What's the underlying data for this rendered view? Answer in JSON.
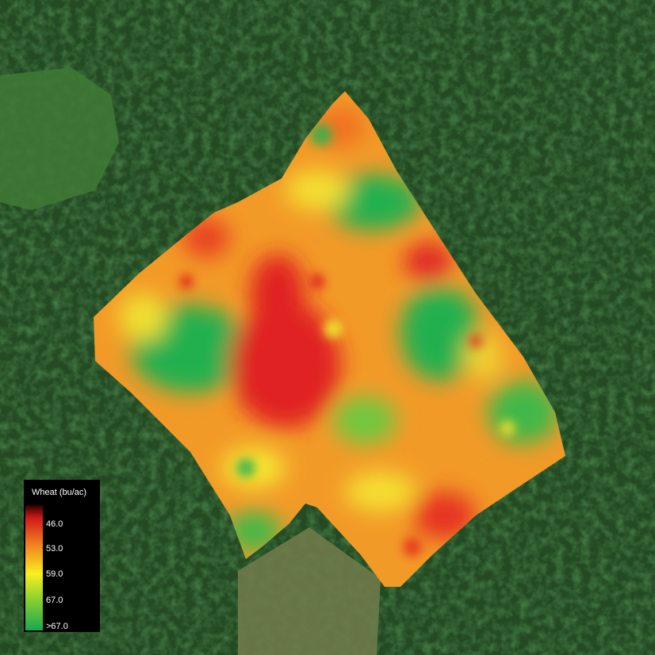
{
  "legend": {
    "title": "Wheat (bu/ac)",
    "labels": [
      "46.0",
      "53.0",
      "59.0",
      "67.0",
      ">67.0"
    ]
  }
}
